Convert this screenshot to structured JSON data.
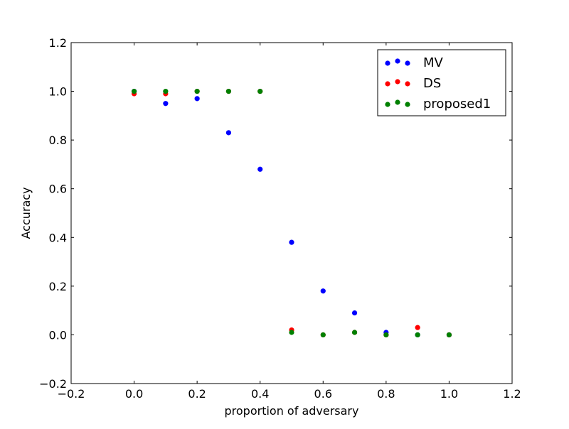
{
  "chart_data": {
    "type": "scatter",
    "title": "",
    "xlabel": "proportion of adversary",
    "ylabel": "Accuracy",
    "xlim": [
      -0.2,
      1.2
    ],
    "ylim": [
      -0.2,
      1.2
    ],
    "xticks": [
      -0.2,
      0.0,
      0.2,
      0.4,
      0.6,
      0.8,
      1.0,
      1.2
    ],
    "yticks": [
      -0.2,
      0.0,
      0.2,
      0.4,
      0.6,
      0.8,
      1.0,
      1.2
    ],
    "xtick_labels": [
      "−0.2",
      "0.0",
      "0.2",
      "0.4",
      "0.6",
      "0.8",
      "1.0",
      "1.2"
    ],
    "ytick_labels": [
      "−0.2",
      "0.0",
      "0.2",
      "0.4",
      "0.6",
      "0.8",
      "1.0",
      "1.2"
    ],
    "grid": false,
    "legend_position": "top-right",
    "series": [
      {
        "name": "MV",
        "color": "#0000ff",
        "points": [
          [
            0.0,
            1.0
          ],
          [
            0.1,
            0.95
          ],
          [
            0.2,
            0.97
          ],
          [
            0.3,
            0.83
          ],
          [
            0.4,
            0.68
          ],
          [
            0.5,
            0.38
          ],
          [
            0.6,
            0.18
          ],
          [
            0.7,
            0.09
          ],
          [
            0.8,
            0.01
          ],
          [
            0.9,
            0.0
          ],
          [
            1.0,
            0.0
          ]
        ]
      },
      {
        "name": "DS",
        "color": "#ff0000",
        "points": [
          [
            0.0,
            0.99
          ],
          [
            0.1,
            0.99
          ],
          [
            0.2,
            1.0
          ],
          [
            0.3,
            1.0
          ],
          [
            0.4,
            1.0
          ],
          [
            0.5,
            0.02
          ],
          [
            0.6,
            0.0
          ],
          [
            0.7,
            0.01
          ],
          [
            0.8,
            0.0
          ],
          [
            0.9,
            0.03
          ],
          [
            1.0,
            0.0
          ]
        ]
      },
      {
        "name": "proposed1",
        "color": "#008000",
        "points": [
          [
            0.0,
            1.0
          ],
          [
            0.1,
            1.0
          ],
          [
            0.2,
            1.0
          ],
          [
            0.3,
            1.0
          ],
          [
            0.4,
            1.0
          ],
          [
            0.5,
            0.01
          ],
          [
            0.6,
            0.0
          ],
          [
            0.7,
            0.01
          ],
          [
            0.8,
            0.0
          ],
          [
            0.9,
            0.0
          ],
          [
            1.0,
            0.0
          ]
        ]
      }
    ]
  }
}
